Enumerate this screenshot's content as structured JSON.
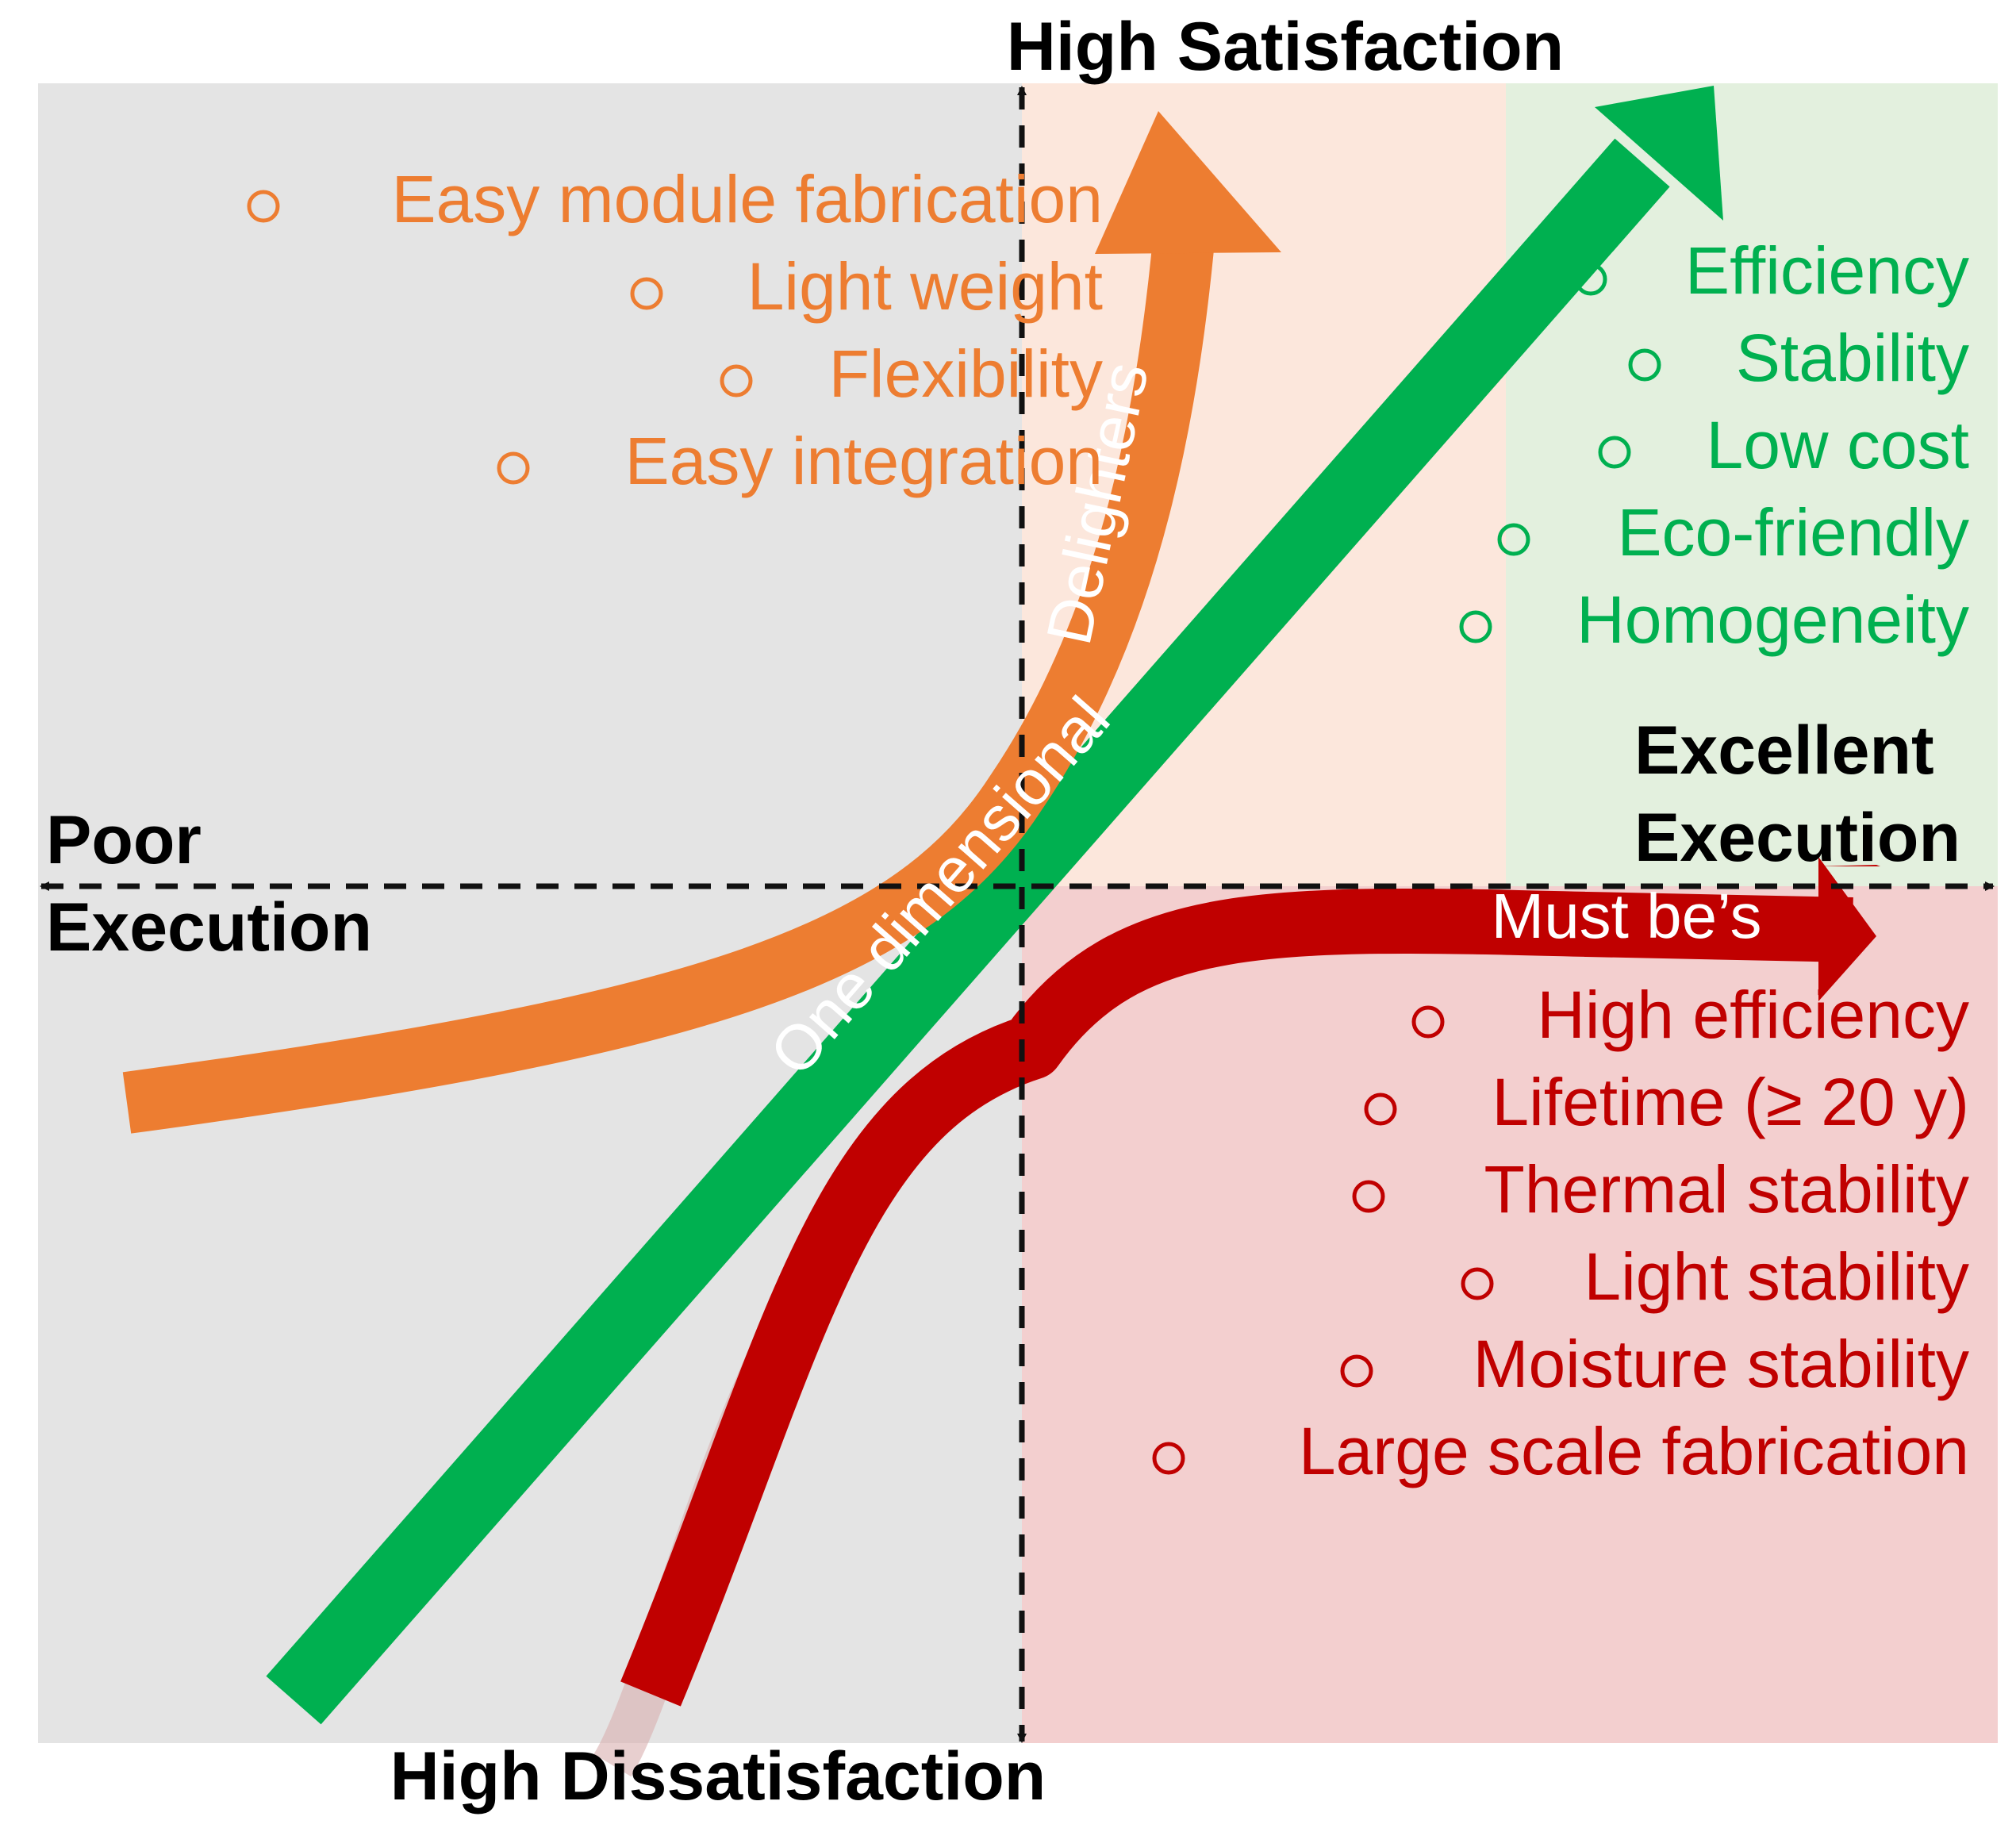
{
  "axes": {
    "top_label": "High Satisfaction",
    "bottom_label": "High Dissatisfaction",
    "left_label_line1": "Poor",
    "left_label_line2": "Execution",
    "right_label_line1": "Excellent",
    "right_label_line2": "Execution"
  },
  "curves": {
    "delighters": "Delighters",
    "one_dimensional": "One dimensional",
    "must_bes": "Must be’s"
  },
  "delighters_items": [
    "Easy module fabrication",
    "Light weight",
    "Flexibility",
    "Easy integration"
  ],
  "one_dimensional_items": [
    "Efficiency",
    "Stability",
    "Low cost",
    "Eco-friendly",
    "Homogeneity"
  ],
  "must_be_items": [
    "High efficiency",
    "Lifetime (≥ 20 y)",
    "Thermal stability",
    "Light stability",
    "Moisture stability",
    "Large scale fabrication"
  ],
  "colors": {
    "delighters": "#ED7D31",
    "one_dimensional": "#00B050",
    "must_bes": "#C00000",
    "quadrant_poor": "#E4E4E4",
    "quadrant_delight": "#FCE7DC",
    "quadrant_excellent": "#E3F0DE",
    "quadrant_must": "#F3CFCF"
  }
}
